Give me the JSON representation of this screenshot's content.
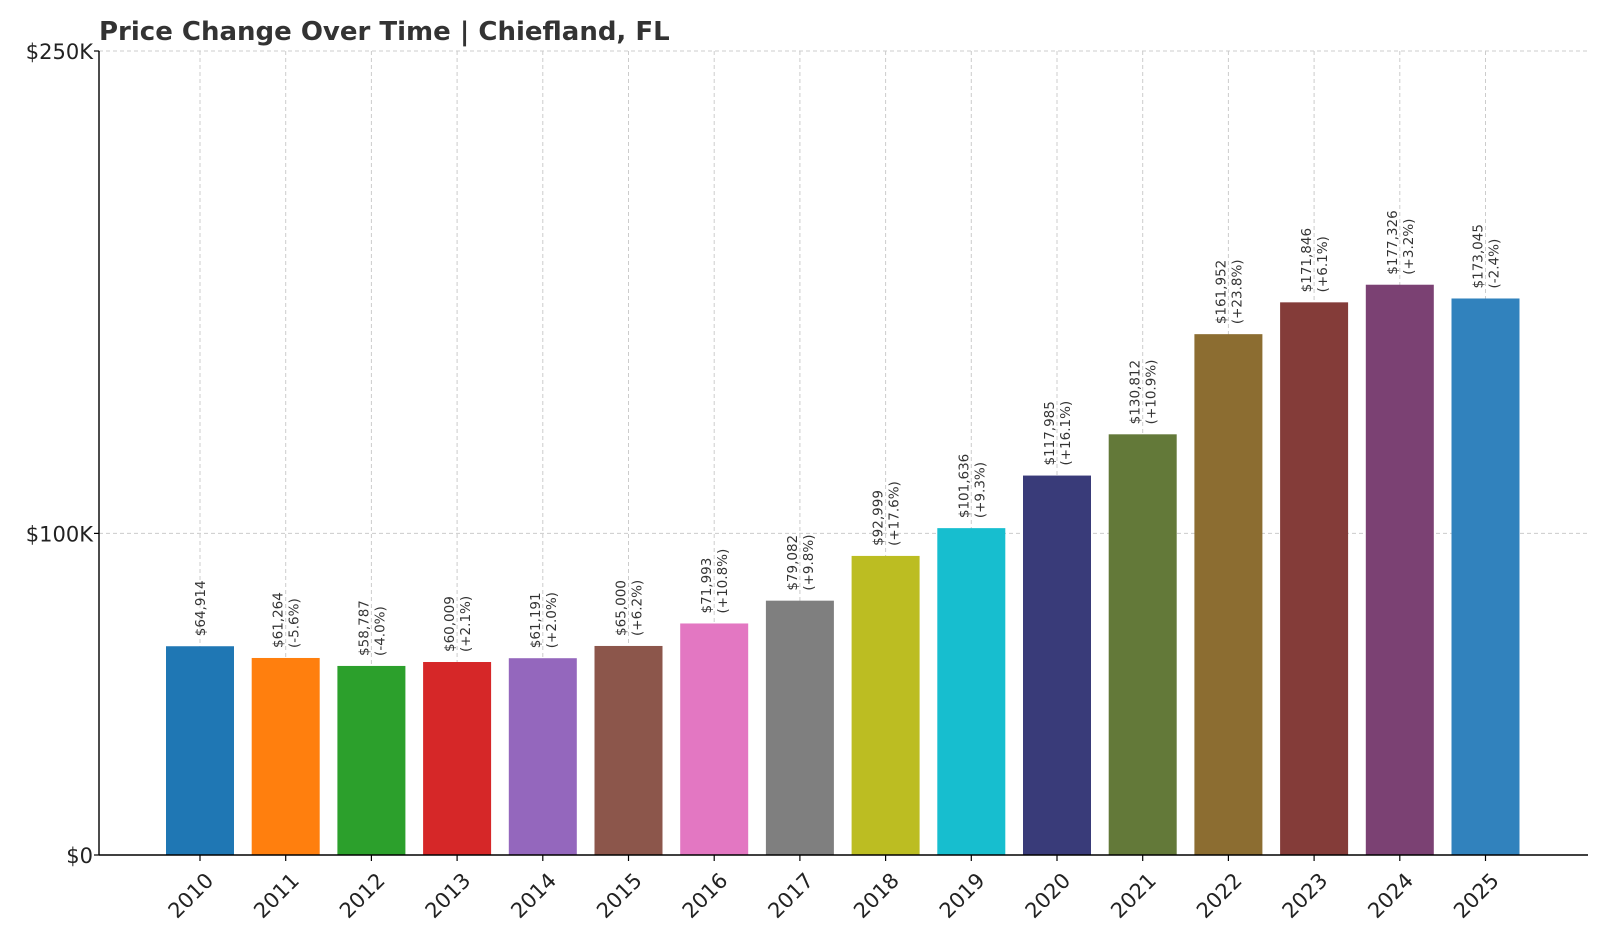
{
  "chart_data": {
    "type": "bar",
    "title": "Price Change Over Time | Chiefland, FL",
    "xlabel": "",
    "ylabel": "",
    "ylim": [
      0,
      250000
    ],
    "yticks": [
      {
        "value": 0,
        "label": "$0"
      },
      {
        "value": 100000,
        "label": "$100K"
      },
      {
        "value": 250000,
        "label": "$250K"
      }
    ],
    "grid": true,
    "legend": "none",
    "categories": [
      "2010",
      "2011",
      "2012",
      "2013",
      "2014",
      "2015",
      "2016",
      "2017",
      "2018",
      "2019",
      "2020",
      "2021",
      "2022",
      "2023",
      "2024",
      "2025"
    ],
    "values": [
      64914,
      61264,
      58787,
      60009,
      61191,
      65000,
      71993,
      79082,
      92999,
      101636,
      117985,
      130812,
      161952,
      171846,
      177326,
      173045
    ],
    "value_labels": [
      "$64,914",
      "$61,264",
      "$58,787",
      "$60,009",
      "$61,191",
      "$65,000",
      "$71,993",
      "$79,082",
      "$92,999",
      "$101,636",
      "$117,985",
      "$130,812",
      "$161,952",
      "$171,846",
      "$177,326",
      "$173,045"
    ],
    "change_labels": [
      "",
      "(-5.6%)",
      "(-4.0%)",
      "(+2.1%)",
      "(+2.0%)",
      "(+6.2%)",
      "(+10.8%)",
      "(+9.8%)",
      "(+17.6%)",
      "(+9.3%)",
      "(+16.1%)",
      "(+10.9%)",
      "(+23.8%)",
      "(+6.1%)",
      "(+3.2%)",
      "(-2.4%)"
    ],
    "colors": [
      "#1f77b4",
      "#ff7f0e",
      "#2ca02c",
      "#d62728",
      "#9467bd",
      "#8c564b",
      "#e377c2",
      "#7f7f7f",
      "#bcbd22",
      "#17becf",
      "#393b79",
      "#637939",
      "#8c6d31",
      "#843c39",
      "#7b4173",
      "#3182bd"
    ]
  }
}
